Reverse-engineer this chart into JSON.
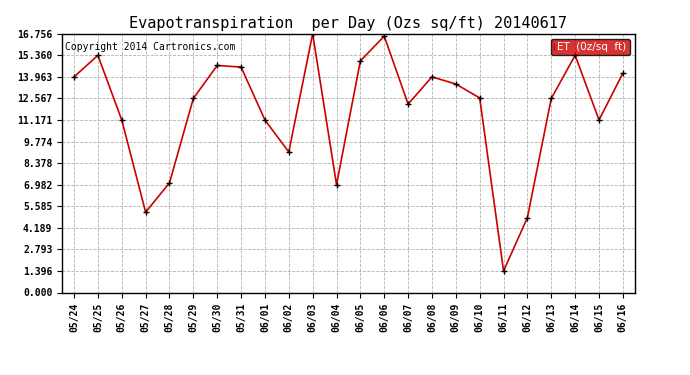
{
  "title": "Evapotranspiration  per Day (Ozs sq/ft) 20140617",
  "copyright": "Copyright 2014 Cartronics.com",
  "legend_label": "ET  (0z/sq  ft)",
  "x_labels": [
    "05/24",
    "05/25",
    "05/26",
    "05/27",
    "05/28",
    "05/29",
    "05/30",
    "05/31",
    "06/01",
    "06/02",
    "06/03",
    "06/04",
    "06/05",
    "06/06",
    "06/07",
    "06/08",
    "06/09",
    "06/10",
    "06/11",
    "06/12",
    "06/13",
    "06/14",
    "06/15",
    "06/16"
  ],
  "y_values": [
    13.963,
    15.36,
    11.171,
    5.2,
    7.1,
    12.567,
    14.7,
    14.6,
    11.171,
    9.1,
    16.756,
    6.982,
    15.0,
    16.6,
    12.2,
    13.963,
    13.5,
    12.6,
    1.396,
    4.85,
    12.567,
    15.36,
    11.171,
    14.2
  ],
  "line_color": "#cc0000",
  "marker_color": "#000000",
  "bg_color": "#ffffff",
  "grid_color": "#aaaaaa",
  "yticks": [
    0.0,
    1.396,
    2.793,
    4.189,
    5.585,
    6.982,
    8.378,
    9.774,
    11.171,
    12.567,
    13.963,
    15.36,
    16.756
  ],
  "ylim": [
    0.0,
    16.756
  ],
  "legend_bg": "#cc0000",
  "legend_text_color": "#ffffff",
  "title_fontsize": 11,
  "tick_fontsize": 7,
  "copyright_fontsize": 7
}
